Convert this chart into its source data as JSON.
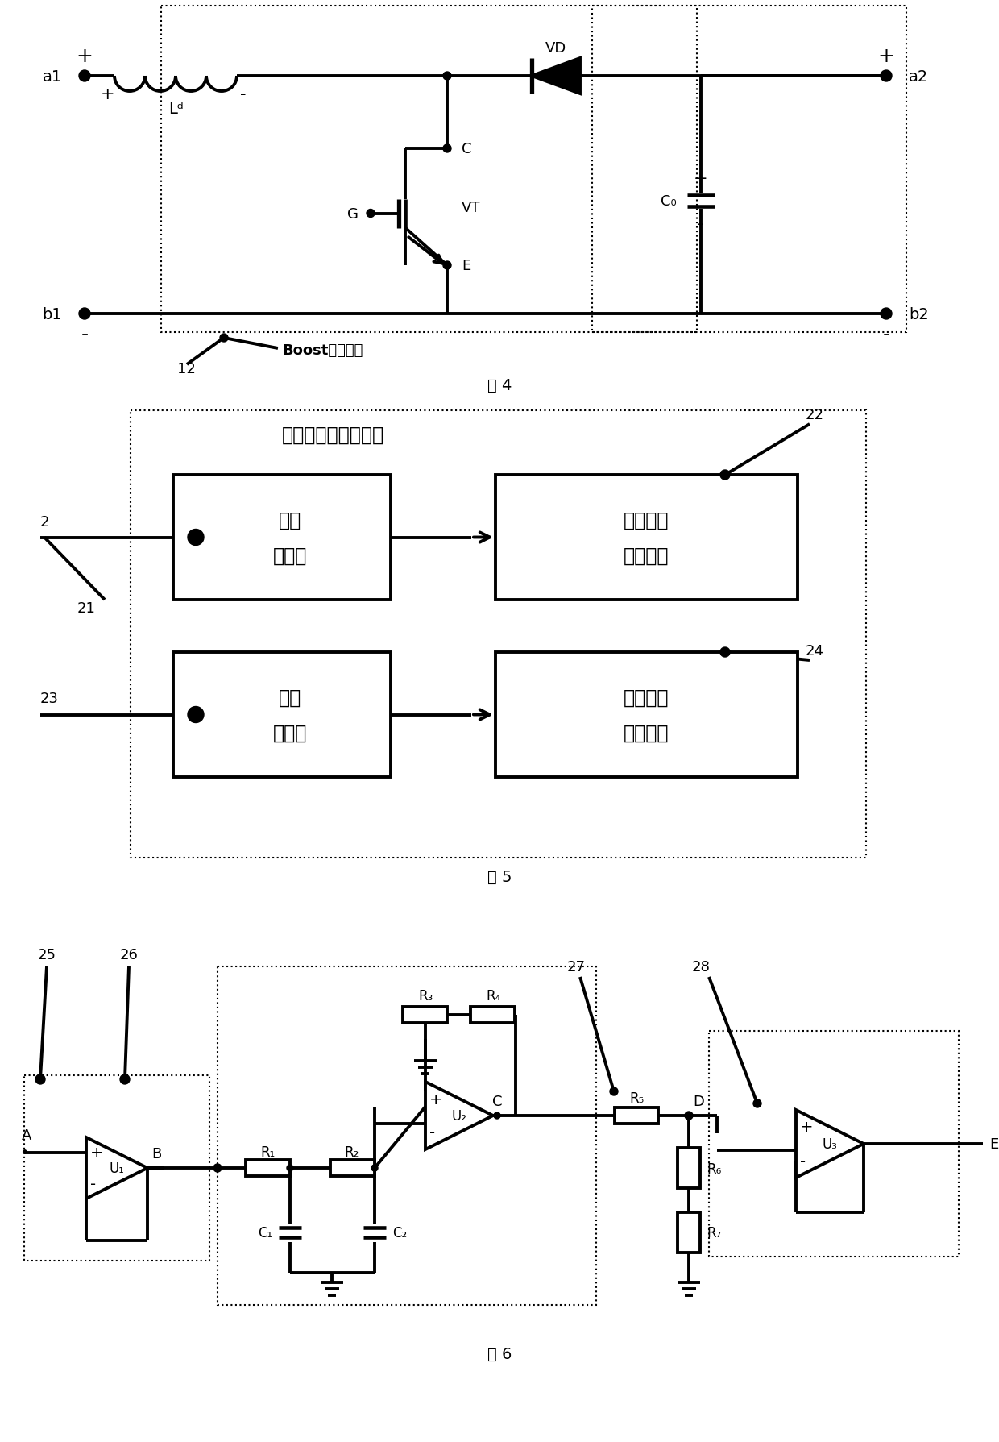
{
  "bg": "#ffffff",
  "lw": 2.8,
  "lw_thin": 1.5,
  "fs_main": 14,
  "fs_small": 12,
  "fs_cap": 14,
  "fs_large": 16,
  "fig4_caption": "图 4",
  "fig5_caption": "图 5",
  "fig6_caption": "图 6",
  "fig5_title": "电压和电流检测模块",
  "vs_label": [
    "电压",
    "传感器"
  ],
  "vc_label": [
    "电压信号",
    "调理电路"
  ],
  "cs_label": [
    "电流",
    "传感器"
  ],
  "cc_label": [
    "电流信号",
    "调理电路"
  ],
  "boost_label": "Boost斩波电路"
}
